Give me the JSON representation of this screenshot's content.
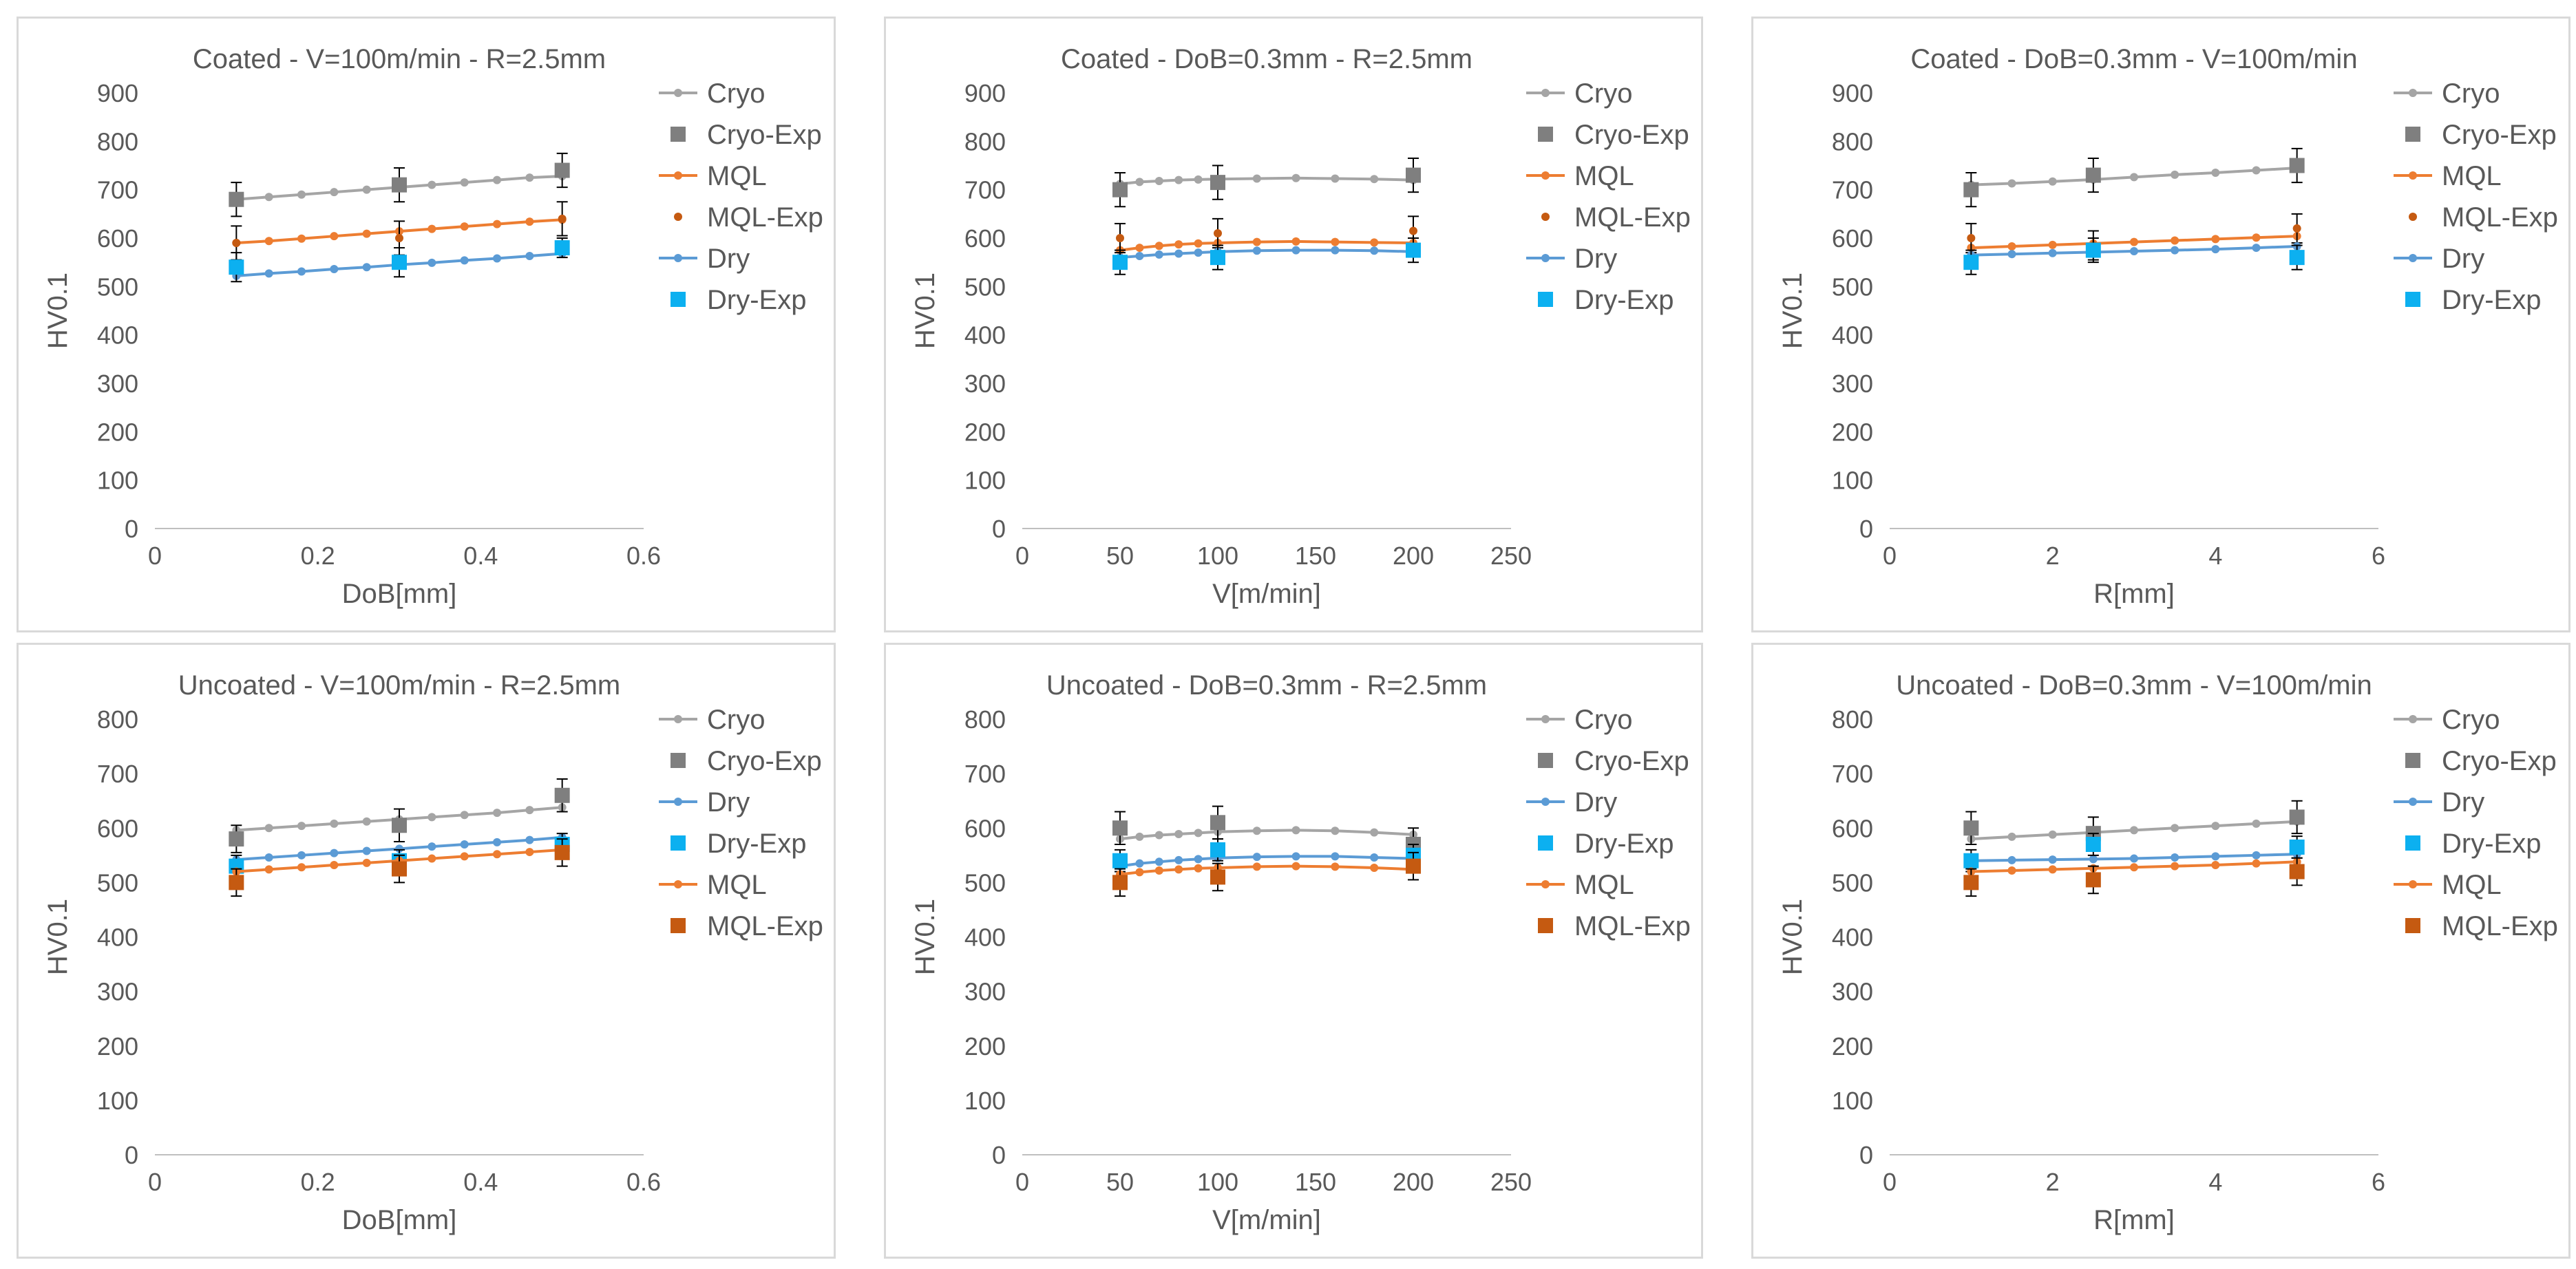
{
  "colors": {
    "Cryo": "#a5a5a5",
    "Cryo-Exp": "#7f7f7f",
    "MQL": "#ed7d31",
    "MQL-Exp": "#c55a11",
    "Dry": "#5b9bd5",
    "Dry-Exp": "#0cb0f0"
  },
  "chart_data": [
    {
      "type": "line",
      "title": "Coated - V=100m/min - R=2.5mm",
      "xlabel": "DoB[mm]",
      "ylabel": "HV0.1",
      "xlim": [
        0,
        0.6
      ],
      "xticks": [
        0,
        0.2,
        0.4,
        0.6
      ],
      "xtick_labels": [
        "0",
        "0.2",
        "0.4",
        "0.6"
      ],
      "ylim": [
        0,
        900
      ],
      "yticks": [
        0,
        100,
        200,
        300,
        400,
        500,
        600,
        700,
        800,
        900
      ],
      "legend": [
        "Cryo",
        "Cryo-Exp",
        "MQL",
        "MQL-Exp",
        "Dry",
        "Dry-Exp"
      ],
      "series": [
        {
          "name": "Cryo",
          "kind": "line",
          "x": [
            0.1,
            0.14,
            0.18,
            0.22,
            0.26,
            0.3,
            0.34,
            0.38,
            0.42,
            0.46,
            0.5
          ],
          "y": [
            680,
            685,
            690,
            695,
            700,
            705,
            710,
            715,
            720,
            725,
            728
          ]
        },
        {
          "name": "Cryo-Exp",
          "kind": "exp",
          "x": [
            0.1,
            0.3,
            0.5
          ],
          "y": [
            680,
            710,
            740
          ],
          "err": [
            35,
            35,
            35
          ]
        },
        {
          "name": "MQL",
          "kind": "line",
          "x": [
            0.1,
            0.14,
            0.18,
            0.22,
            0.26,
            0.3,
            0.34,
            0.38,
            0.42,
            0.46,
            0.5
          ],
          "y": [
            590,
            594,
            599,
            604,
            609,
            614,
            619,
            624,
            629,
            634,
            638
          ]
        },
        {
          "name": "MQL-Exp",
          "kind": "exp",
          "x": [
            0.1,
            0.3,
            0.5
          ],
          "y": [
            590,
            600,
            640
          ],
          "err": [
            35,
            35,
            35
          ]
        },
        {
          "name": "Dry",
          "kind": "line",
          "x": [
            0.1,
            0.14,
            0.18,
            0.22,
            0.26,
            0.3,
            0.34,
            0.38,
            0.42,
            0.46,
            0.5
          ],
          "y": [
            522,
            527,
            531,
            536,
            540,
            545,
            549,
            554,
            558,
            563,
            568
          ]
        },
        {
          "name": "Dry-Exp",
          "kind": "exp",
          "x": [
            0.1,
            0.3,
            0.5
          ],
          "y": [
            540,
            550,
            580
          ],
          "err": [
            30,
            30,
            20
          ]
        }
      ]
    },
    {
      "type": "line",
      "title": "Coated - DoB=0.3mm - R=2.5mm",
      "xlabel": "V[m/min]",
      "ylabel": "HV0.1",
      "xlim": [
        0,
        250
      ],
      "xticks": [
        0,
        50,
        100,
        150,
        200,
        250
      ],
      "xtick_labels": [
        "0",
        "50",
        "100",
        "150",
        "200",
        "250"
      ],
      "ylim": [
        0,
        900
      ],
      "yticks": [
        0,
        100,
        200,
        300,
        400,
        500,
        600,
        700,
        800,
        900
      ],
      "legend": [
        "Cryo",
        "Cryo-Exp",
        "MQL",
        "MQL-Exp",
        "Dry",
        "Dry-Exp"
      ],
      "series": [
        {
          "name": "Cryo",
          "kind": "line",
          "x": [
            50,
            60,
            70,
            80,
            90,
            100,
            120,
            140,
            160,
            180,
            200
          ],
          "y": [
            712,
            716,
            718,
            720,
            721,
            722,
            723,
            724,
            723,
            722,
            720
          ]
        },
        {
          "name": "Cryo-Exp",
          "kind": "exp",
          "x": [
            50,
            100,
            200
          ],
          "y": [
            700,
            715,
            730
          ],
          "err": [
            35,
            35,
            35
          ]
        },
        {
          "name": "MQL",
          "kind": "line",
          "x": [
            50,
            60,
            70,
            80,
            90,
            100,
            120,
            140,
            160,
            180,
            200
          ],
          "y": [
            575,
            580,
            584,
            587,
            589,
            590,
            592,
            593,
            592,
            591,
            590
          ]
        },
        {
          "name": "MQL-Exp",
          "kind": "exp",
          "x": [
            50,
            100,
            200
          ],
          "y": [
            600,
            610,
            615
          ],
          "err": [
            30,
            30,
            30
          ]
        },
        {
          "name": "Dry",
          "kind": "line",
          "x": [
            50,
            60,
            70,
            80,
            90,
            100,
            120,
            140,
            160,
            180,
            200
          ],
          "y": [
            560,
            563,
            566,
            568,
            570,
            572,
            574,
            575,
            575,
            574,
            572
          ]
        },
        {
          "name": "Dry-Exp",
          "kind": "exp",
          "x": [
            50,
            100,
            200
          ],
          "y": [
            550,
            560,
            575
          ],
          "err": [
            25,
            25,
            25
          ]
        }
      ]
    },
    {
      "type": "line",
      "title": "Coated - DoB=0.3mm - V=100m/min",
      "xlabel": "R[mm]",
      "ylabel": "HV0.1",
      "xlim": [
        0,
        6
      ],
      "xticks": [
        0,
        2,
        4,
        6
      ],
      "xtick_labels": [
        "0",
        "2",
        "4",
        "6"
      ],
      "ylim": [
        0,
        900
      ],
      "yticks": [
        0,
        100,
        200,
        300,
        400,
        500,
        600,
        700,
        800,
        900
      ],
      "legend": [
        "Cryo",
        "Cryo-Exp",
        "MQL",
        "MQL-Exp",
        "Dry",
        "Dry-Exp"
      ],
      "series": [
        {
          "name": "Cryo",
          "kind": "line",
          "x": [
            1,
            1.5,
            2,
            2.5,
            3,
            3.5,
            4,
            4.5,
            5
          ],
          "y": [
            710,
            713,
            717,
            721,
            726,
            731,
            735,
            740,
            745
          ]
        },
        {
          "name": "Cryo-Exp",
          "kind": "exp",
          "x": [
            1,
            2.5,
            5
          ],
          "y": [
            700,
            730,
            750
          ],
          "err": [
            35,
            35,
            35
          ]
        },
        {
          "name": "MQL",
          "kind": "line",
          "x": [
            1,
            1.5,
            2,
            2.5,
            3,
            3.5,
            4,
            4.5,
            5
          ],
          "y": [
            580,
            583,
            586,
            589,
            592,
            595,
            598,
            601,
            604
          ]
        },
        {
          "name": "MQL-Exp",
          "kind": "exp",
          "x": [
            1,
            2.5,
            5
          ],
          "y": [
            600,
            585,
            620
          ],
          "err": [
            30,
            30,
            30
          ]
        },
        {
          "name": "Dry",
          "kind": "line",
          "x": [
            1,
            1.5,
            2,
            2.5,
            3,
            3.5,
            4,
            4.5,
            5
          ],
          "y": [
            565,
            567,
            569,
            571,
            573,
            575,
            577,
            580,
            583
          ]
        },
        {
          "name": "Dry-Exp",
          "kind": "exp",
          "x": [
            1,
            2.5,
            5
          ],
          "y": [
            550,
            575,
            560
          ],
          "err": [
            25,
            25,
            25
          ]
        }
      ]
    },
    {
      "type": "line",
      "title": "Uncoated - V=100m/min - R=2.5mm",
      "xlabel": "DoB[mm]",
      "ylabel": "HV0.1",
      "xlim": [
        0,
        0.6
      ],
      "xticks": [
        0,
        0.2,
        0.4,
        0.6
      ],
      "xtick_labels": [
        "0",
        "0.2",
        "0.4",
        "0.6"
      ],
      "ylim": [
        0,
        800
      ],
      "yticks": [
        0,
        100,
        200,
        300,
        400,
        500,
        600,
        700,
        800
      ],
      "legend": [
        "Cryo",
        "Cryo-Exp",
        "Dry",
        "Dry-Exp",
        "MQL",
        "MQL-Exp"
      ],
      "series": [
        {
          "name": "Cryo",
          "kind": "line",
          "x": [
            0.1,
            0.14,
            0.18,
            0.22,
            0.26,
            0.3,
            0.34,
            0.38,
            0.42,
            0.46,
            0.5
          ],
          "y": [
            596,
            600,
            604,
            608,
            612,
            616,
            620,
            624,
            628,
            633,
            638
          ]
        },
        {
          "name": "Cryo-Exp",
          "kind": "exp",
          "x": [
            0.1,
            0.3,
            0.5
          ],
          "y": [
            580,
            605,
            660
          ],
          "err": [
            25,
            30,
            30
          ]
        },
        {
          "name": "Dry",
          "kind": "line",
          "x": [
            0.1,
            0.14,
            0.18,
            0.22,
            0.26,
            0.3,
            0.34,
            0.38,
            0.42,
            0.46,
            0.5
          ],
          "y": [
            542,
            546,
            550,
            554,
            558,
            562,
            566,
            570,
            574,
            578,
            583
          ]
        },
        {
          "name": "Dry-Exp",
          "kind": "exp",
          "x": [
            0.1,
            0.3,
            0.5
          ],
          "y": [
            530,
            540,
            570
          ],
          "err": [
            20,
            20,
            20
          ]
        },
        {
          "name": "MQL",
          "kind": "line",
          "x": [
            0.1,
            0.14,
            0.18,
            0.22,
            0.26,
            0.3,
            0.34,
            0.38,
            0.42,
            0.46,
            0.5
          ],
          "y": [
            520,
            524,
            528,
            532,
            536,
            540,
            544,
            548,
            552,
            556,
            560
          ]
        },
        {
          "name": "MQL-Exp",
          "kind": "exp",
          "x": [
            0.1,
            0.3,
            0.5
          ],
          "y": [
            500,
            525,
            555
          ],
          "err": [
            25,
            25,
            25
          ]
        }
      ]
    },
    {
      "type": "line",
      "title": "Uncoated - DoB=0.3mm - R=2.5mm",
      "xlabel": "V[m/min]",
      "ylabel": "HV0.1",
      "xlim": [
        0,
        250
      ],
      "xticks": [
        0,
        50,
        100,
        150,
        200,
        250
      ],
      "xtick_labels": [
        "0",
        "50",
        "100",
        "150",
        "200",
        "250"
      ],
      "ylim": [
        0,
        800
      ],
      "yticks": [
        0,
        100,
        200,
        300,
        400,
        500,
        600,
        700,
        800
      ],
      "legend": [
        "Cryo",
        "Cryo-Exp",
        "Dry",
        "Dry-Exp",
        "MQL",
        "MQL-Exp"
      ],
      "series": [
        {
          "name": "Cryo",
          "kind": "line",
          "x": [
            50,
            60,
            70,
            80,
            90,
            100,
            120,
            140,
            160,
            180,
            200
          ],
          "y": [
            580,
            584,
            587,
            589,
            591,
            593,
            595,
            596,
            595,
            592,
            588
          ]
        },
        {
          "name": "Cryo-Exp",
          "kind": "exp",
          "x": [
            50,
            100,
            200
          ],
          "y": [
            600,
            610,
            570
          ],
          "err": [
            30,
            30,
            30
          ]
        },
        {
          "name": "Dry",
          "kind": "line",
          "x": [
            50,
            60,
            70,
            80,
            90,
            100,
            120,
            140,
            160,
            180,
            200
          ],
          "y": [
            530,
            535,
            538,
            541,
            543,
            545,
            547,
            548,
            548,
            546,
            544
          ]
        },
        {
          "name": "Dry-Exp",
          "kind": "exp",
          "x": [
            50,
            100,
            200
          ],
          "y": [
            540,
            560,
            550
          ],
          "err": [
            20,
            20,
            20
          ]
        },
        {
          "name": "MQL",
          "kind": "line",
          "x": [
            50,
            60,
            70,
            80,
            90,
            100,
            120,
            140,
            160,
            180,
            200
          ],
          "y": [
            515,
            519,
            522,
            524,
            526,
            527,
            529,
            530,
            529,
            527,
            524
          ]
        },
        {
          "name": "MQL-Exp",
          "kind": "exp",
          "x": [
            50,
            100,
            200
          ],
          "y": [
            500,
            510,
            530
          ],
          "err": [
            25,
            25,
            25
          ]
        }
      ]
    },
    {
      "type": "line",
      "title": "Uncoated - DoB=0.3mm - V=100m/min",
      "xlabel": "R[mm]",
      "ylabel": "HV0.1",
      "xlim": [
        0,
        6
      ],
      "xticks": [
        0,
        2,
        4,
        6
      ],
      "xtick_labels": [
        "0",
        "2",
        "4",
        "6"
      ],
      "ylim": [
        0,
        800
      ],
      "yticks": [
        0,
        100,
        200,
        300,
        400,
        500,
        600,
        700,
        800
      ],
      "legend": [
        "Cryo",
        "Cryo-Exp",
        "Dry",
        "Dry-Exp",
        "MQL",
        "MQL-Exp"
      ],
      "series": [
        {
          "name": "Cryo",
          "kind": "line",
          "x": [
            1,
            1.5,
            2,
            2.5,
            3,
            3.5,
            4,
            4.5,
            5
          ],
          "y": [
            580,
            584,
            588,
            592,
            596,
            600,
            604,
            608,
            612
          ]
        },
        {
          "name": "Cryo-Exp",
          "kind": "exp",
          "x": [
            1,
            2.5,
            5
          ],
          "y": [
            600,
            590,
            620
          ],
          "err": [
            30,
            30,
            30
          ]
        },
        {
          "name": "Dry",
          "kind": "line",
          "x": [
            1,
            1.5,
            2,
            2.5,
            3,
            3.5,
            4,
            4.5,
            5
          ],
          "y": [
            540,
            541,
            542,
            543,
            544,
            546,
            548,
            550,
            552
          ]
        },
        {
          "name": "Dry-Exp",
          "kind": "exp",
          "x": [
            1,
            2.5,
            5
          ],
          "y": [
            540,
            570,
            565
          ],
          "err": [
            20,
            20,
            20
          ]
        },
        {
          "name": "MQL",
          "kind": "line",
          "x": [
            1,
            1.5,
            2,
            2.5,
            3,
            3.5,
            4,
            4.5,
            5
          ],
          "y": [
            520,
            522,
            524,
            526,
            528,
            530,
            532,
            535,
            538
          ]
        },
        {
          "name": "MQL-Exp",
          "kind": "exp",
          "x": [
            1,
            2.5,
            5
          ],
          "y": [
            500,
            505,
            520
          ],
          "err": [
            25,
            25,
            25
          ]
        }
      ]
    }
  ]
}
